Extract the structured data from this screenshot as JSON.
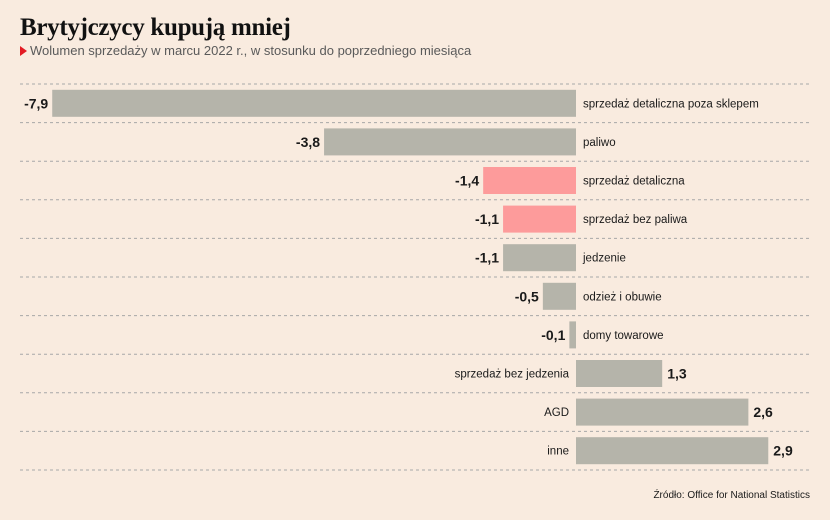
{
  "title": "Brytyjczycy kupują mniej",
  "subtitle": "Wolumen sprzedaży w marcu 2022 r., w stosunku do poprzedniego miesiąca",
  "source": "Źródło: Office for National Statistics",
  "colors": {
    "default": "#b5b4aa",
    "highlight": "#fd9b9b",
    "marker": "#e31b23",
    "gridline": "#a8a8a8",
    "background": "#f9ebdf"
  },
  "chart_data": {
    "type": "bar",
    "orientation": "horizontal",
    "title": "Brytyjczycy kupują mniej",
    "subtitle": "Wolumen sprzedaży w marcu 2022 r., w stosunku do poprzedniego miesiąca",
    "categories": [
      "sprzedaż detaliczna poza sklepem",
      "paliwo",
      "sprzedaż detaliczna",
      "sprzedaż bez paliwa",
      "jedzenie",
      "odzież i obuwie",
      "domy towarowe",
      "sprzedaż bez jedzenia",
      "AGD",
      "inne"
    ],
    "values": [
      -7.9,
      -3.8,
      -1.4,
      -1.1,
      -1.1,
      -0.5,
      -0.1,
      1.3,
      2.6,
      2.9
    ],
    "value_labels": [
      "-7,9",
      "-3,8",
      "-1,4",
      "-1,1",
      "-1,1",
      "-0,5",
      "-0,1",
      "1,3",
      "2,6",
      "2,9"
    ],
    "highlighted": [
      false,
      false,
      true,
      true,
      false,
      false,
      false,
      false,
      false,
      false
    ],
    "xlim": [
      -8,
      3
    ],
    "grid": true,
    "legend": "none"
  }
}
